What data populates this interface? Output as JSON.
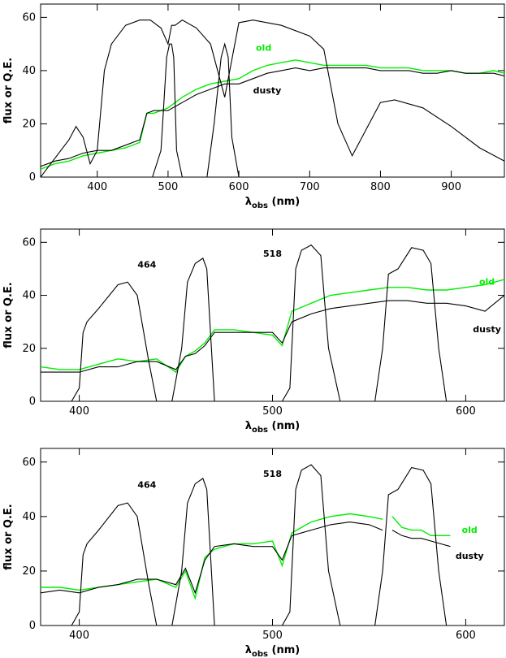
{
  "chart_data": [
    {
      "type": "line",
      "xlabel": "λobs (nm)",
      "xlabel_main": "λ",
      "xlabel_sub": "obs",
      "xlabel_unit": "(nm)",
      "ylabel": "flux or Q.E.",
      "xlim": [
        320,
        975
      ],
      "ylim": [
        0,
        65
      ],
      "xticks": [
        400,
        500,
        600,
        700,
        800,
        900
      ],
      "yticks": [
        0,
        20,
        40,
        60
      ],
      "grid": false,
      "colors": {
        "old": "#00ee00",
        "dusty": "#000000",
        "filters": "#000000"
      },
      "annotations": [
        {
          "text": "old",
          "x": 635,
          "y": 47.5,
          "color": "#00ee00"
        },
        {
          "text": "dusty",
          "x": 640,
          "y": 31.5,
          "color": "#000000"
        }
      ],
      "series": [
        {
          "name": "old",
          "x": [
            320,
            340,
            360,
            380,
            400,
            420,
            440,
            460,
            470,
            480,
            500,
            520,
            540,
            560,
            580,
            600,
            620,
            640,
            660,
            680,
            700,
            720,
            740,
            760,
            780,
            800,
            820,
            840,
            860,
            880,
            900,
            920,
            940,
            960,
            975
          ],
          "values": [
            3,
            5,
            6,
            8,
            9,
            10,
            11,
            13,
            24,
            24,
            26,
            30,
            33,
            35,
            36,
            37,
            40,
            42,
            43,
            44,
            43,
            42,
            42,
            42,
            42,
            41,
            41,
            41,
            40,
            40,
            40,
            39,
            39,
            40,
            39
          ]
        },
        {
          "name": "dusty",
          "x": [
            320,
            340,
            360,
            380,
            400,
            420,
            440,
            460,
            470,
            480,
            500,
            520,
            540,
            560,
            580,
            600,
            620,
            640,
            660,
            680,
            700,
            720,
            740,
            760,
            780,
            800,
            820,
            840,
            860,
            880,
            900,
            920,
            940,
            960,
            975
          ],
          "values": [
            4,
            6,
            7,
            9,
            10,
            10,
            12,
            14,
            24,
            25,
            25,
            28,
            31,
            33,
            35,
            35,
            37,
            39,
            40,
            41,
            40,
            41,
            41,
            41,
            41,
            40,
            40,
            40,
            39,
            39,
            40,
            39,
            39,
            39,
            38
          ]
        },
        {
          "name": "",
          "x": [
            320,
            340,
            360,
            370,
            380,
            390,
            400,
            410,
            420,
            440,
            460,
            475,
            490,
            500,
            505,
            510,
            520,
            540,
            560,
            580,
            600,
            620,
            660,
            700,
            720,
            740,
            760,
            780,
            800,
            820,
            860,
            900,
            940,
            975
          ],
          "values": [
            0,
            7,
            14,
            19,
            15,
            5,
            10,
            40,
            50,
            57,
            59,
            59,
            56,
            50,
            57,
            57,
            59,
            56,
            50,
            30,
            58,
            59,
            57,
            53,
            48,
            20,
            8,
            18,
            28,
            29,
            26,
            19,
            11,
            6
          ]
        },
        {
          "name": "",
          "x": [
            478,
            490,
            498,
            502,
            505,
            508,
            512,
            520
          ],
          "values": [
            0,
            10,
            45,
            50,
            50,
            45,
            10,
            0
          ]
        },
        {
          "name": "",
          "x": [
            555,
            565,
            575,
            580,
            585,
            590,
            600
          ],
          "values": [
            0,
            20,
            45,
            50,
            45,
            15,
            0
          ]
        }
      ]
    },
    {
      "type": "line",
      "xlabel": "λobs (nm)",
      "xlabel_main": "λ",
      "xlabel_sub": "obs",
      "xlabel_unit": "(nm)",
      "ylabel": "flux or Q.E.",
      "xlim": [
        380,
        620
      ],
      "ylim": [
        0,
        65
      ],
      "xticks": [
        400,
        500,
        600
      ],
      "yticks": [
        0,
        20,
        40,
        60
      ],
      "grid": false,
      "colors": {
        "old": "#00ee00",
        "dusty": "#000000",
        "filters": "#000000"
      },
      "annotations": [
        {
          "text": "464",
          "x": 435,
          "y": 50.5,
          "color": "#000000"
        },
        {
          "text": "518",
          "x": 500,
          "y": 54.5,
          "color": "#000000"
        },
        {
          "text": "old",
          "x": 611,
          "y": 44,
          "color": "#00ee00"
        },
        {
          "text": "dusty",
          "x": 611,
          "y": 26,
          "color": "#000000"
        }
      ],
      "series": [
        {
          "name": "old",
          "x": [
            380,
            390,
            400,
            410,
            420,
            430,
            440,
            450,
            455,
            460,
            465,
            470,
            480,
            490,
            500,
            505,
            510,
            520,
            530,
            540,
            550,
            560,
            570,
            580,
            590,
            600,
            610,
            620
          ],
          "values": [
            13,
            12,
            12,
            14,
            16,
            15,
            16,
            11,
            17,
            19,
            22,
            27,
            27,
            26,
            25,
            21,
            34,
            37,
            40,
            41,
            42,
            43,
            43,
            42,
            42,
            43,
            44,
            46
          ]
        },
        {
          "name": "dusty",
          "x": [
            380,
            390,
            400,
            410,
            420,
            430,
            440,
            450,
            455,
            460,
            465,
            470,
            480,
            490,
            500,
            505,
            510,
            520,
            530,
            540,
            550,
            560,
            570,
            580,
            590,
            600,
            610,
            620
          ],
          "values": [
            11,
            11,
            11,
            13,
            13,
            15,
            15,
            12,
            17,
            18,
            21,
            26,
            26,
            26,
            26,
            22,
            30,
            33,
            35,
            36,
            37,
            38,
            38,
            37,
            37,
            36,
            34,
            40
          ]
        },
        {
          "name": "",
          "x": [
            380,
            396,
            400,
            402,
            404,
            410,
            420,
            425,
            430,
            436,
            440
          ],
          "values": [
            0,
            0,
            5,
            26,
            30,
            35,
            44,
            45,
            40,
            15,
            0
          ]
        },
        {
          "name": "",
          "x": [
            448,
            453,
            456,
            460,
            464,
            466,
            470
          ],
          "values": [
            0,
            20,
            45,
            52,
            54,
            50,
            0
          ]
        },
        {
          "name": "",
          "x": [
            505,
            509,
            512,
            515,
            520,
            525,
            529,
            535
          ],
          "values": [
            0,
            5,
            50,
            57,
            59,
            55,
            20,
            0
          ]
        },
        {
          "name": "",
          "x": [
            553,
            557,
            560,
            565,
            572,
            578,
            582,
            586,
            590
          ],
          "values": [
            0,
            20,
            48,
            50,
            58,
            57,
            52,
            20,
            0
          ]
        }
      ]
    },
    {
      "type": "line",
      "xlabel": "λobs (nm)",
      "xlabel_main": "λ",
      "xlabel_sub": "obs",
      "xlabel_unit": "(nm)",
      "ylabel": "flux or Q.E.",
      "xlim": [
        380,
        620
      ],
      "ylim": [
        0,
        65
      ],
      "xticks": [
        400,
        500,
        600
      ],
      "yticks": [
        0,
        20,
        40,
        60
      ],
      "grid": false,
      "colors": {
        "old": "#00ee00",
        "dusty": "#000000",
        "filters": "#000000"
      },
      "annotations": [
        {
          "text": "464",
          "x": 435,
          "y": 50.5,
          "color": "#000000"
        },
        {
          "text": "518",
          "x": 500,
          "y": 54.5,
          "color": "#000000"
        },
        {
          "text": "old",
          "x": 602,
          "y": 34,
          "color": "#00ee00"
        },
        {
          "text": "dusty",
          "x": 602,
          "y": 24.5,
          "color": "#000000"
        }
      ],
      "series": [
        {
          "name": "old",
          "x": [
            380,
            390,
            400,
            410,
            420,
            430,
            440,
            450,
            455,
            460,
            465,
            470,
            480,
            490,
            500,
            505,
            510,
            520,
            530,
            540,
            550,
            557
          ],
          "values": [
            14,
            14,
            13,
            14,
            15,
            16,
            17,
            14,
            20,
            10,
            25,
            28,
            30,
            30,
            31,
            22,
            34,
            38,
            40,
            41,
            40,
            39
          ]
        },
        {
          "name": "dusty",
          "x": [
            380,
            390,
            400,
            410,
            420,
            430,
            440,
            450,
            455,
            460,
            465,
            470,
            480,
            490,
            500,
            505,
            510,
            520,
            530,
            540,
            550,
            557
          ],
          "values": [
            12,
            13,
            12,
            14,
            15,
            17,
            17,
            15,
            21,
            12,
            24,
            29,
            30,
            29,
            29,
            24,
            33,
            35,
            37,
            38,
            37,
            35
          ]
        },
        {
          "name": "old",
          "x": [
            562,
            567,
            572,
            577,
            582,
            587,
            592
          ],
          "values": [
            40,
            36,
            35,
            35,
            33,
            33,
            33
          ]
        },
        {
          "name": "dusty",
          "x": [
            562,
            567,
            572,
            577,
            582,
            587,
            592
          ],
          "values": [
            35,
            33,
            32,
            32,
            31,
            30,
            29
          ]
        },
        {
          "name": "",
          "x": [
            380,
            396,
            400,
            402,
            404,
            410,
            420,
            425,
            430,
            436,
            440
          ],
          "values": [
            0,
            0,
            5,
            26,
            30,
            35,
            44,
            45,
            40,
            15,
            0
          ]
        },
        {
          "name": "",
          "x": [
            448,
            453,
            456,
            460,
            464,
            466,
            470
          ],
          "values": [
            0,
            20,
            45,
            52,
            54,
            50,
            0
          ]
        },
        {
          "name": "",
          "x": [
            505,
            509,
            512,
            515,
            520,
            525,
            529,
            535
          ],
          "values": [
            0,
            5,
            50,
            57,
            59,
            55,
            20,
            0
          ]
        },
        {
          "name": "",
          "x": [
            553,
            557,
            560,
            565,
            572,
            578,
            582,
            586,
            590
          ],
          "values": [
            0,
            20,
            48,
            50,
            58,
            57,
            52,
            20,
            0
          ]
        }
      ]
    }
  ]
}
